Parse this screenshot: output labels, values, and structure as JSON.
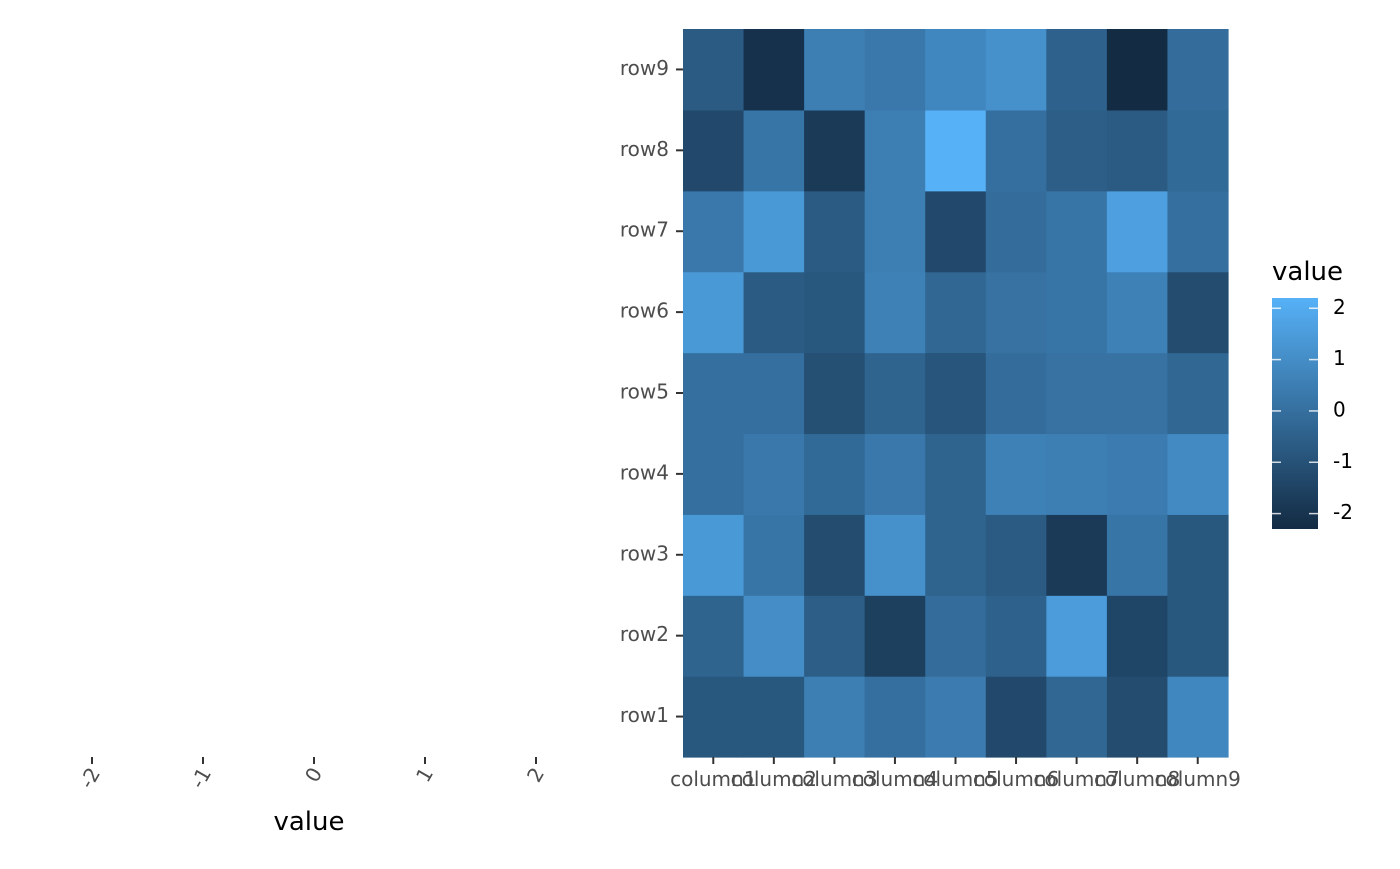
{
  "chart_data": [
    {
      "type": "scatter",
      "xlabel": "value",
      "ylabel": "",
      "x_ticks": [
        -2,
        -1,
        0,
        1,
        2
      ],
      "x_tick_labels": [
        "-2",
        "-1",
        "0",
        "1",
        "2"
      ],
      "xlim": [
        -2.2,
        2.2
      ],
      "points": [],
      "grid": false
    },
    {
      "type": "heatmap",
      "x_categories": [
        "column1",
        "column2",
        "column3",
        "column4",
        "column5",
        "column6",
        "column7",
        "column8",
        "column9"
      ],
      "y_categories": [
        "row1",
        "row2",
        "row3",
        "row4",
        "row5",
        "row6",
        "row7",
        "row8",
        "row9"
      ],
      "values": [
        [
          -0.8,
          -0.8,
          0.5,
          0.0,
          0.4,
          -1.3,
          -0.3,
          -1.2,
          0.8
        ],
        [
          -0.4,
          1.0,
          -0.6,
          -1.6,
          -0.1,
          -0.5,
          1.5,
          -1.4,
          -0.8
        ],
        [
          1.4,
          0.2,
          -1.2,
          1.1,
          -0.4,
          -0.7,
          -1.8,
          0.2,
          -0.8
        ],
        [
          0.0,
          0.3,
          -0.2,
          0.3,
          -0.4,
          0.6,
          0.5,
          0.4,
          0.9
        ],
        [
          0.0,
          0.0,
          -1.1,
          -0.4,
          -0.9,
          -0.1,
          0.1,
          0.1,
          -0.3
        ],
        [
          1.4,
          -0.7,
          -0.8,
          0.6,
          -0.3,
          0.1,
          0.2,
          0.6,
          -1.2
        ],
        [
          0.3,
          1.4,
          -0.7,
          0.5,
          -1.3,
          -0.1,
          0.2,
          1.6,
          0.0
        ],
        [
          -1.3,
          0.2,
          -1.8,
          0.5,
          2.2,
          0.0,
          -0.6,
          -0.7,
          -0.2
        ],
        [
          -0.7,
          -2.1,
          0.5,
          0.3,
          0.8,
          1.1,
          -0.5,
          -2.3,
          -0.1
        ]
      ],
      "color_scale": {
        "title": "value",
        "low": "#132B43",
        "high": "#56B1F7",
        "ticks": [
          2,
          1,
          0,
          -1,
          -2
        ],
        "tick_labels": [
          "2",
          "1",
          "0",
          "-1",
          "-2"
        ],
        "min": -2.3,
        "max": 2.2
      },
      "legend_position": "right"
    }
  ]
}
